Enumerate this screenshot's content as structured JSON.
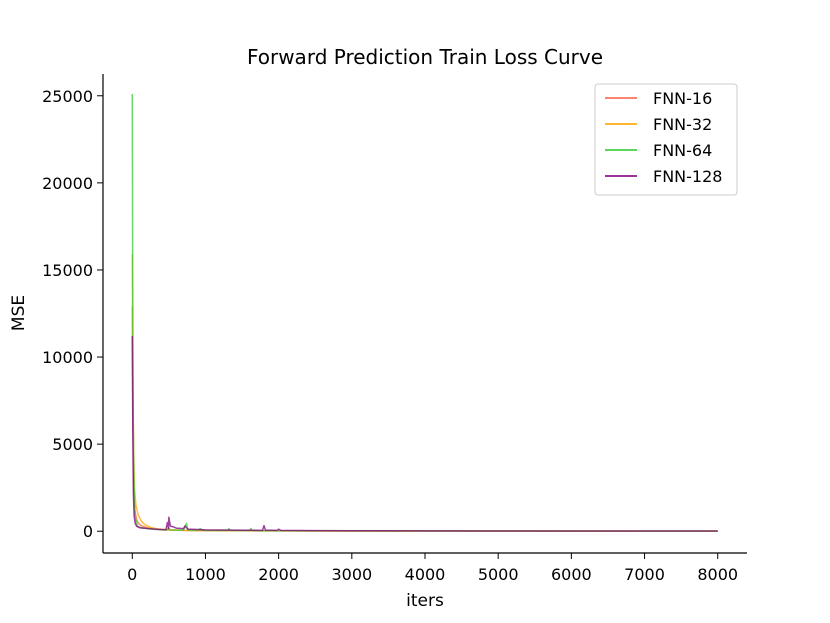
{
  "chart_data": {
    "type": "line",
    "title": "Forward Prediction Train Loss Curve",
    "xlabel": "iters",
    "ylabel": "MSE",
    "xlim": [
      -400,
      8400
    ],
    "ylim": [
      -1250,
      26250
    ],
    "xticks": [
      0,
      1000,
      2000,
      3000,
      4000,
      5000,
      6000,
      7000,
      8000
    ],
    "yticks": [
      0,
      5000,
      10000,
      15000,
      20000,
      25000
    ],
    "grid": false,
    "legend_position": "top-right",
    "series": [
      {
        "name": "FNN-16",
        "color": "#ff6347",
        "points": [
          [
            0,
            12900
          ],
          [
            10,
            6000
          ],
          [
            20,
            2600
          ],
          [
            35,
            1200
          ],
          [
            60,
            650
          ],
          [
            90,
            420
          ],
          [
            130,
            300
          ],
          [
            200,
            200
          ],
          [
            300,
            130
          ],
          [
            450,
            80
          ],
          [
            700,
            50
          ],
          [
            1000,
            35
          ],
          [
            1500,
            25
          ],
          [
            2000,
            20
          ],
          [
            3000,
            15
          ],
          [
            4000,
            12
          ],
          [
            5000,
            10
          ],
          [
            6000,
            9
          ],
          [
            7000,
            8
          ],
          [
            8000,
            7
          ]
        ]
      },
      {
        "name": "FNN-32",
        "color": "#ffa500",
        "points": [
          [
            0,
            15900
          ],
          [
            8,
            9000
          ],
          [
            18,
            4600
          ],
          [
            30,
            2500
          ],
          [
            50,
            1500
          ],
          [
            80,
            950
          ],
          [
            120,
            600
          ],
          [
            170,
            380
          ],
          [
            250,
            220
          ],
          [
            350,
            130
          ],
          [
            500,
            75
          ],
          [
            800,
            45
          ],
          [
            1200,
            30
          ],
          [
            2000,
            20
          ],
          [
            3000,
            15
          ],
          [
            4000,
            12
          ],
          [
            5000,
            10
          ],
          [
            6000,
            9
          ],
          [
            7000,
            8
          ],
          [
            8000,
            7
          ]
        ]
      },
      {
        "name": "FNN-64",
        "color": "#32cd32",
        "points": [
          [
            0,
            25100
          ],
          [
            6,
            14000
          ],
          [
            12,
            7000
          ],
          [
            20,
            3500
          ],
          [
            30,
            1500
          ],
          [
            45,
            700
          ],
          [
            70,
            300
          ],
          [
            120,
            200
          ],
          [
            200,
            150
          ],
          [
            300,
            110
          ],
          [
            420,
            80
          ],
          [
            470,
            60
          ],
          [
            500,
            200
          ],
          [
            520,
            70
          ],
          [
            700,
            60
          ],
          [
            740,
            450
          ],
          [
            760,
            60
          ],
          [
            900,
            50
          ],
          [
            930,
            150
          ],
          [
            960,
            50
          ],
          [
            1300,
            40
          ],
          [
            1320,
            150
          ],
          [
            1340,
            40
          ],
          [
            1600,
            35
          ],
          [
            1620,
            160
          ],
          [
            1640,
            35
          ],
          [
            2000,
            25
          ],
          [
            3000,
            18
          ],
          [
            4000,
            14
          ],
          [
            5000,
            12
          ],
          [
            6000,
            10
          ],
          [
            7000,
            9
          ],
          [
            8000,
            8
          ]
        ]
      },
      {
        "name": "FNN-128",
        "color": "#800080",
        "points": [
          [
            0,
            11200
          ],
          [
            8,
            5500
          ],
          [
            15,
            2200
          ],
          [
            25,
            900
          ],
          [
            40,
            450
          ],
          [
            60,
            280
          ],
          [
            100,
            200
          ],
          [
            200,
            160
          ],
          [
            300,
            120
          ],
          [
            420,
            90
          ],
          [
            460,
            100
          ],
          [
            480,
            500
          ],
          [
            495,
            150
          ],
          [
            500,
            800
          ],
          [
            520,
            300
          ],
          [
            560,
            250
          ],
          [
            600,
            180
          ],
          [
            700,
            150
          ],
          [
            720,
            300
          ],
          [
            760,
            120
          ],
          [
            900,
            100
          ],
          [
            1000,
            80
          ],
          [
            1200,
            70
          ],
          [
            1400,
            60
          ],
          [
            1600,
            55
          ],
          [
            1780,
            50
          ],
          [
            1800,
            320
          ],
          [
            1820,
            60
          ],
          [
            1980,
            50
          ],
          [
            2000,
            120
          ],
          [
            2030,
            50
          ],
          [
            2500,
            35
          ],
          [
            3000,
            28
          ],
          [
            4000,
            20
          ],
          [
            5000,
            16
          ],
          [
            6000,
            14
          ],
          [
            7000,
            12
          ],
          [
            8000,
            10
          ]
        ]
      }
    ]
  }
}
